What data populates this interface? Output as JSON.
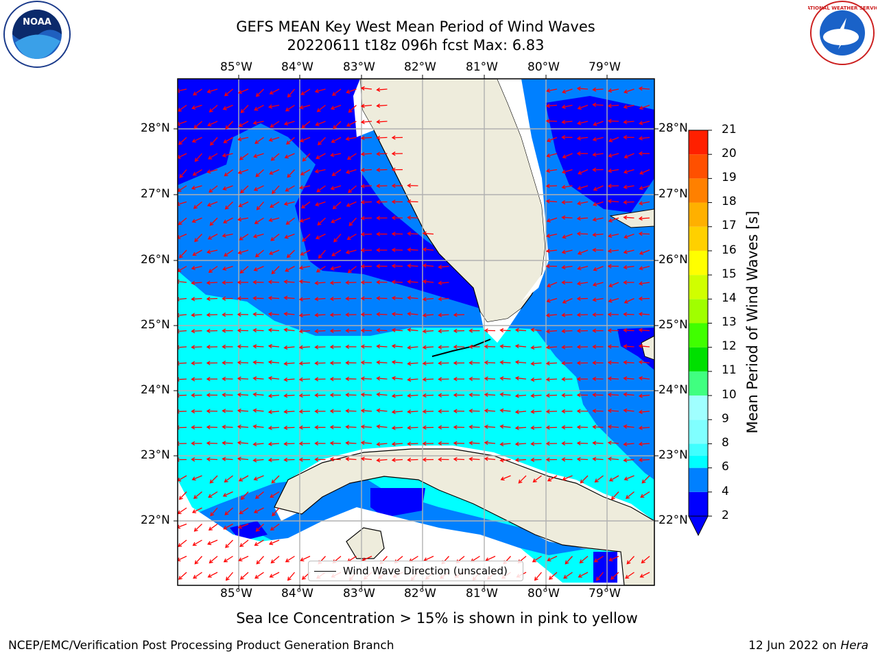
{
  "header": {
    "title_line1": "GEFS MEAN Key West Mean Period of Wind Waves",
    "title_line2": "20220611 t18z 096h fcst   Max: 6.83"
  },
  "logos": {
    "left": "NOAA",
    "right": "NATIONAL WEATHER SERVICE"
  },
  "map": {
    "lon_labels": [
      "85°W",
      "84°W",
      "83°W",
      "82°W",
      "81°W",
      "80°W",
      "79°W"
    ],
    "lat_labels": [
      "28°N",
      "27°N",
      "26°N",
      "25°N",
      "24°N",
      "23°N",
      "22°N"
    ],
    "legend_text": "Wind Wave Direction (unscaled)"
  },
  "colorbar": {
    "label": "Mean Period of Wind Waves [s]",
    "ticks": [
      "21",
      "20",
      "19",
      "18",
      "17",
      "16",
      "15",
      "14",
      "13",
      "12",
      "11",
      "10",
      "9",
      "8",
      "6",
      "4",
      "2"
    ],
    "colors": {
      "2_4": "#0000ff",
      "4_6": "#0080ff",
      "6_7": "#00ffff",
      "7_8": "#40ffff",
      "8_9": "#80ffff",
      "9_10": "#a0ffff",
      "10_11": "#40ff80",
      "11_12": "#00e000",
      "12_13": "#40ff00",
      "13_14": "#a0ff00",
      "14_15": "#d0ff00",
      "15_16": "#ffff00",
      "16_17": "#ffd000",
      "17_18": "#ffb000",
      "18_19": "#ff8000",
      "19_20": "#ff5000",
      "20_21": "#ff2000",
      "top": "#ff0000"
    }
  },
  "footer": {
    "ice_note": "Sea Ice Concentration > 15% is shown in pink to yellow",
    "left": "NCEP/EMC/Verification Post Processing Product Generation Branch",
    "right_prefix": "12 Jun 2022 on ",
    "right_host": "Hera"
  }
}
